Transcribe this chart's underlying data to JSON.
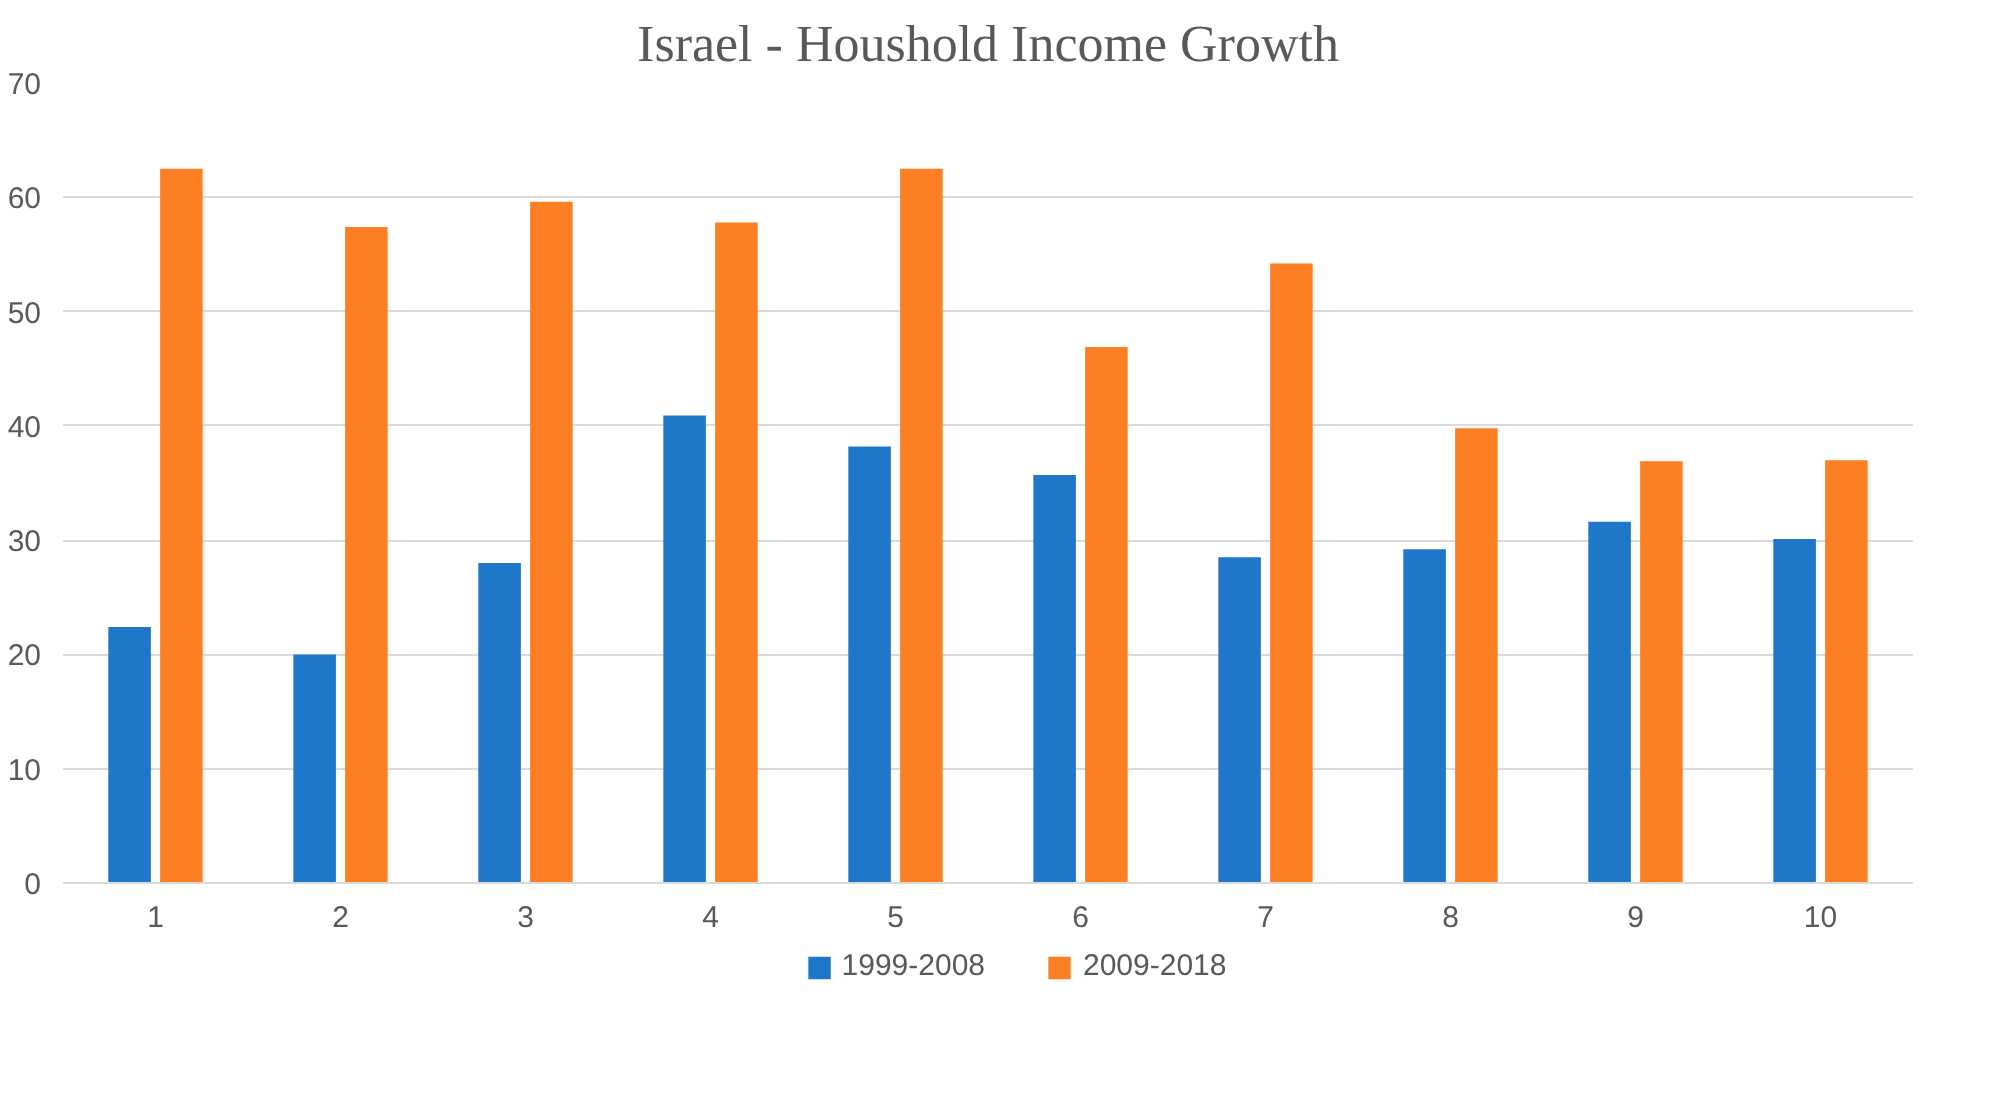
{
  "chart_data": {
    "type": "bar",
    "title": "Israel - Houshold Income Growth",
    "categories": [
      "1",
      "2",
      "3",
      "4",
      "5",
      "6",
      "7",
      "8",
      "9",
      "10"
    ],
    "series": [
      {
        "name": "1999-2008",
        "color": "#1f77c9",
        "values": [
          22.4,
          20.0,
          28.0,
          40.9,
          38.2,
          35.7,
          28.5,
          29.2,
          31.6,
          30.1
        ]
      },
      {
        "name": "2009-2018",
        "color": "#fd7f23",
        "values": [
          62.5,
          57.4,
          59.6,
          57.8,
          62.5,
          46.9,
          54.2,
          39.8,
          36.9,
          37.0
        ]
      }
    ],
    "ylim": [
      0,
      70
    ],
    "yticks": [
      0,
      10,
      20,
      30,
      40,
      50,
      60,
      70
    ],
    "grid": "y",
    "legend": "bottom"
  }
}
